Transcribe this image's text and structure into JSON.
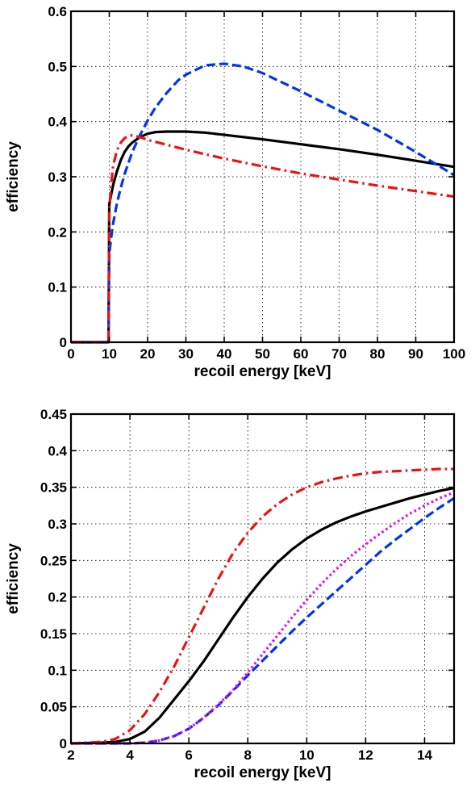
{
  "chart_data": [
    {
      "type": "line",
      "xlabel": "recoil energy [keV]",
      "ylabel": "efficiency",
      "xlim": [
        0,
        100
      ],
      "ylim": [
        0,
        0.6
      ],
      "grid": true,
      "xticks": [
        "0",
        "10",
        "20",
        "30",
        "40",
        "50",
        "60",
        "70",
        "80",
        "90",
        "100"
      ],
      "yticks": [
        "0",
        "0.1",
        "0.2",
        "0.3",
        "0.4",
        "0.5",
        "0.6"
      ],
      "series": [
        {
          "color": "#000000",
          "style": "solid",
          "x": [
            0,
            9.8,
            10,
            10.5,
            11,
            12,
            13,
            14,
            15,
            16,
            18,
            20,
            22,
            25,
            28,
            30,
            35,
            40,
            50,
            60,
            70,
            80,
            90,
            100
          ],
          "y": [
            0,
            0,
            0.25,
            0.268,
            0.285,
            0.31,
            0.33,
            0.345,
            0.355,
            0.362,
            0.372,
            0.378,
            0.381,
            0.382,
            0.382,
            0.382,
            0.38,
            0.376,
            0.368,
            0.359,
            0.35,
            0.34,
            0.329,
            0.318
          ]
        },
        {
          "color": "#0033ee",
          "style": "dashed",
          "x": [
            0,
            9.8,
            10,
            10.5,
            11,
            12,
            13,
            14,
            15,
            16,
            18,
            20,
            22,
            25,
            28,
            30,
            35,
            40,
            45,
            50,
            60,
            70,
            80,
            90,
            100
          ],
          "y": [
            0,
            0,
            0.16,
            0.19,
            0.215,
            0.252,
            0.28,
            0.305,
            0.325,
            0.345,
            0.375,
            0.402,
            0.425,
            0.452,
            0.475,
            0.485,
            0.502,
            0.505,
            0.5,
            0.488,
            0.455,
            0.42,
            0.385,
            0.345,
            0.303
          ]
        },
        {
          "color": "#ee1111",
          "style": "dashdot",
          "x": [
            0,
            9.8,
            10,
            10.3,
            10.7,
            11,
            12,
            13,
            14,
            15,
            16,
            18,
            20,
            25,
            30,
            40,
            50,
            60,
            70,
            80,
            90,
            100
          ],
          "y": [
            0,
            0,
            0.24,
            0.27,
            0.3,
            0.32,
            0.348,
            0.362,
            0.37,
            0.374,
            0.375,
            0.372,
            0.367,
            0.358,
            0.349,
            0.333,
            0.319,
            0.306,
            0.295,
            0.284,
            0.274,
            0.264
          ]
        }
      ]
    },
    {
      "type": "line",
      "xlabel": "recoil energy [keV]",
      "ylabel": "efficiency",
      "xlim": [
        2,
        15
      ],
      "ylim": [
        0,
        0.45
      ],
      "grid": true,
      "xticks": [
        "2",
        "4",
        "6",
        "8",
        "10",
        "12",
        "14"
      ],
      "yticks": [
        "0",
        "0.05",
        "0.1",
        "0.15",
        "0.2",
        "0.25",
        "0.3",
        "0.35",
        "0.4",
        "0.45"
      ],
      "series": [
        {
          "color": "#000000",
          "style": "solid",
          "x": [
            2,
            3,
            3.5,
            4,
            4.5,
            5,
            5.5,
            6,
            6.5,
            7,
            7.5,
            8,
            8.5,
            9,
            9.5,
            10,
            10.5,
            11,
            11.5,
            12,
            12.5,
            13,
            13.5,
            14,
            14.5,
            15
          ],
          "y": [
            0,
            0.001,
            0.002,
            0.006,
            0.016,
            0.035,
            0.06,
            0.085,
            0.112,
            0.142,
            0.172,
            0.2,
            0.225,
            0.247,
            0.265,
            0.28,
            0.292,
            0.302,
            0.31,
            0.317,
            0.323,
            0.329,
            0.335,
            0.34,
            0.345,
            0.349
          ]
        },
        {
          "color": "#0033ee",
          "style": "dashed",
          "x": [
            2,
            4,
            4.5,
            5,
            5.5,
            6,
            6.5,
            7,
            7.5,
            8,
            8.5,
            9,
            9.5,
            10,
            10.5,
            11,
            11.5,
            12,
            12.5,
            13,
            13.5,
            14,
            14.5,
            15
          ],
          "y": [
            0,
            0,
            0.001,
            0.004,
            0.01,
            0.02,
            0.035,
            0.052,
            0.072,
            0.093,
            0.113,
            0.133,
            0.153,
            0.172,
            0.19,
            0.208,
            0.226,
            0.244,
            0.262,
            0.278,
            0.293,
            0.308,
            0.322,
            0.335
          ]
        },
        {
          "color": "#ee00ee",
          "style": "dotted",
          "x": [
            2,
            4,
            4.5,
            5,
            5.5,
            6,
            6.5,
            7,
            7.5,
            8,
            8.5,
            9,
            9.5,
            10,
            10.5,
            11,
            11.5,
            12,
            12.5,
            13,
            13.5,
            14,
            14.5,
            15
          ],
          "y": [
            0,
            0,
            0.001,
            0.004,
            0.01,
            0.02,
            0.035,
            0.053,
            0.073,
            0.097,
            0.122,
            0.147,
            0.172,
            0.196,
            0.218,
            0.238,
            0.256,
            0.272,
            0.287,
            0.301,
            0.314,
            0.325,
            0.335,
            0.343
          ]
        },
        {
          "color": "#ee1111",
          "style": "dashdot",
          "x": [
            2,
            3,
            3.5,
            4,
            4.5,
            5,
            5.5,
            6,
            6.5,
            7,
            7.5,
            8,
            8.5,
            9,
            9.5,
            10,
            10.5,
            11,
            11.5,
            12,
            12.5,
            13,
            13.5,
            14,
            14.5,
            15
          ],
          "y": [
            0,
            0.002,
            0.006,
            0.018,
            0.04,
            0.07,
            0.105,
            0.145,
            0.185,
            0.225,
            0.26,
            0.288,
            0.31,
            0.327,
            0.34,
            0.35,
            0.357,
            0.362,
            0.366,
            0.369,
            0.371,
            0.372,
            0.373,
            0.374,
            0.375,
            0.375
          ]
        }
      ]
    }
  ]
}
